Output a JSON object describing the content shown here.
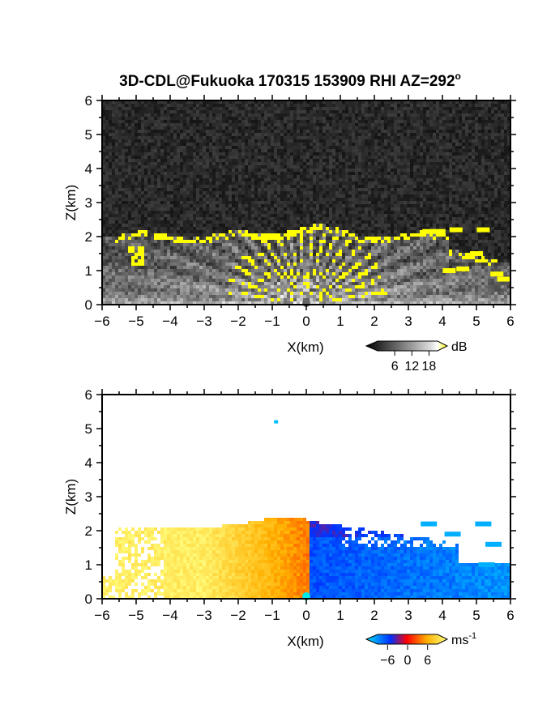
{
  "title": "3D-CDL@Fukuoka 170315 153909 RHI AZ=292",
  "title_superscript": "o",
  "chart_data": [
    {
      "id": "reflectivity",
      "type": "heatmap",
      "xlabel": "X(km)",
      "ylabel": "Z(km)",
      "xlim": [
        -6,
        6
      ],
      "ylim": [
        0,
        6
      ],
      "xticks": [
        "-6",
        "-5",
        "-4",
        "-3",
        "-2",
        "-1",
        "0",
        "1",
        "2",
        "3",
        "4",
        "5",
        "6"
      ],
      "yticks": [
        "0",
        "1",
        "2",
        "3",
        "4",
        "5",
        "6"
      ],
      "colorbar": {
        "unit": "dB",
        "range": [
          0,
          21
        ],
        "tick_values": [
          6,
          12,
          18
        ],
        "tick_labels": [
          "6",
          "12",
          "18"
        ],
        "colors": [
          "#000000",
          "#ffffff",
          "#ffff00"
        ]
      },
      "description": "Grayscale backscatter; saturated (yellow) echoes along the ~2.0-2.3 km layer top and in radial streaks near the radar at X=0"
    },
    {
      "id": "doppler",
      "type": "heatmap",
      "xlabel": "X(km)",
      "ylabel": "Z(km)",
      "xlim": [
        -6,
        6
      ],
      "ylim": [
        0,
        6
      ],
      "xticks": [
        "-6",
        "-5",
        "-4",
        "-3",
        "-2",
        "-1",
        "0",
        "1",
        "2",
        "3",
        "4",
        "5",
        "6"
      ],
      "yticks": [
        "0",
        "1",
        "2",
        "3",
        "4",
        "5",
        "6"
      ],
      "colorbar": {
        "unit": "ms",
        "unit_exponent": "-1",
        "range": [
          -9,
          9
        ],
        "tick_values": [
          -6,
          0,
          6
        ],
        "tick_labels": [
          "-6",
          "0",
          "6"
        ],
        "colors": [
          "#00e0ff",
          "#0030ff",
          "#ff0000",
          "#ffb000",
          "#ffff80"
        ]
      },
      "description": "Radial velocity: positive (red-orange-yellow) for X<0, negative (blue-cyan) for X>0, echoes below ~2.5 km"
    }
  ]
}
